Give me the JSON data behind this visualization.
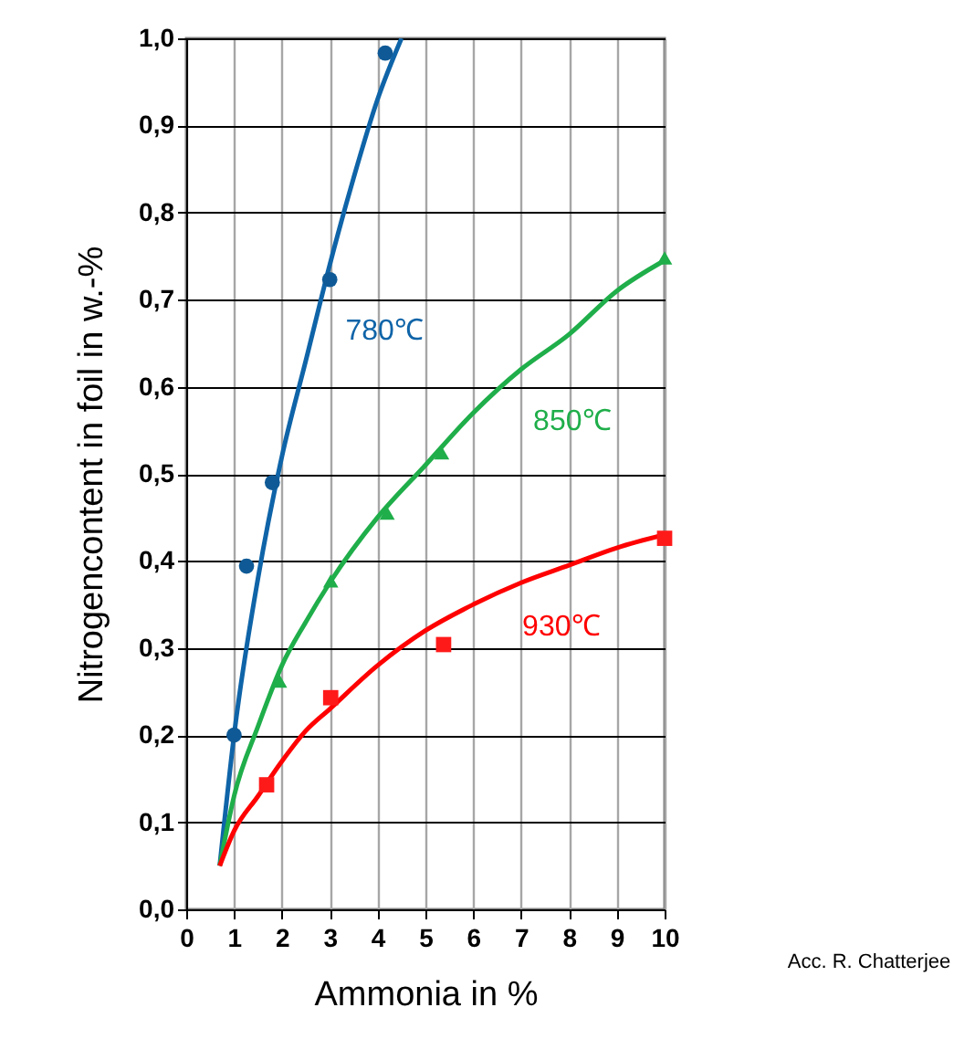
{
  "chart_data": {
    "type": "scatter",
    "xlabel": "Ammonia in %",
    "ylabel": "Nitrogencontent in foil in w.-%",
    "xlim": [
      0,
      10
    ],
    "ylim": [
      0,
      1
    ],
    "xticks": [
      0,
      1,
      2,
      3,
      4,
      5,
      6,
      7,
      8,
      9,
      10
    ],
    "yticks": [
      {
        "value": 0,
        "label": "0,0"
      },
      {
        "value": 0.1,
        "label": "0,1"
      },
      {
        "value": 0.2,
        "label": "0,2"
      },
      {
        "value": 0.3,
        "label": "0,3"
      },
      {
        "value": 0.4,
        "label": "0,4"
      },
      {
        "value": 0.5,
        "label": "0,5"
      },
      {
        "value": 0.6,
        "label": "0,6"
      },
      {
        "value": 0.7,
        "label": "0,7"
      },
      {
        "value": 0.8,
        "label": "0,8"
      },
      {
        "value": 0.9,
        "label": "0,9"
      },
      {
        "value": 1,
        "label": "1,0"
      }
    ],
    "grid": true,
    "series": [
      {
        "type": "line",
        "name": "780℃",
        "color": "#0f64a8",
        "marker": "none",
        "x": [
          0.7,
          1,
          1.5,
          2,
          2.5,
          3,
          3.5,
          4,
          4.5
        ],
        "values": [
          0.05,
          0.2,
          0.38,
          0.52,
          0.63,
          0.74,
          0.84,
          0.93,
          1.0
        ]
      },
      {
        "type": "line",
        "name": "850℃",
        "color": "#1fae4a",
        "marker": "none",
        "x": [
          0.7,
          1,
          1.5,
          2,
          2.5,
          3,
          4,
          5,
          6,
          7,
          8,
          9,
          10
        ],
        "values": [
          0.05,
          0.13,
          0.21,
          0.28,
          0.33,
          0.375,
          0.45,
          0.51,
          0.57,
          0.62,
          0.66,
          0.71,
          0.745
        ]
      },
      {
        "type": "line",
        "name": "930℃",
        "color": "#ff0000",
        "marker": "none",
        "x": [
          0.7,
          1,
          1.5,
          2,
          2.5,
          3,
          4,
          5,
          6,
          7,
          8,
          9,
          10
        ],
        "values": [
          0.05,
          0.09,
          0.13,
          0.17,
          0.205,
          0.23,
          0.28,
          0.32,
          0.35,
          0.375,
          0.395,
          0.415,
          0.43
        ]
      },
      {
        "color": "#0f5a96",
        "marker": "circle",
        "x": [
          1.0,
          1.26,
          1.8,
          3.0,
          4.16
        ],
        "values": [
          0.2,
          0.394,
          0.49,
          0.723,
          0.983
        ]
      },
      {
        "color": "#1fae4a",
        "marker": "triangle",
        "x": [
          1.95,
          3.02,
          4.2,
          5.34,
          10
        ],
        "values": [
          0.262,
          0.377,
          0.455,
          0.524,
          0.748
        ]
      },
      {
        "color": "#ff1a1a",
        "marker": "square",
        "x": [
          1.68,
          3.02,
          5.38,
          10
        ],
        "values": [
          0.143,
          0.243,
          0.304,
          0.426
        ]
      }
    ],
    "annotations": [
      "Acc. R. Chatterjee"
    ]
  }
}
